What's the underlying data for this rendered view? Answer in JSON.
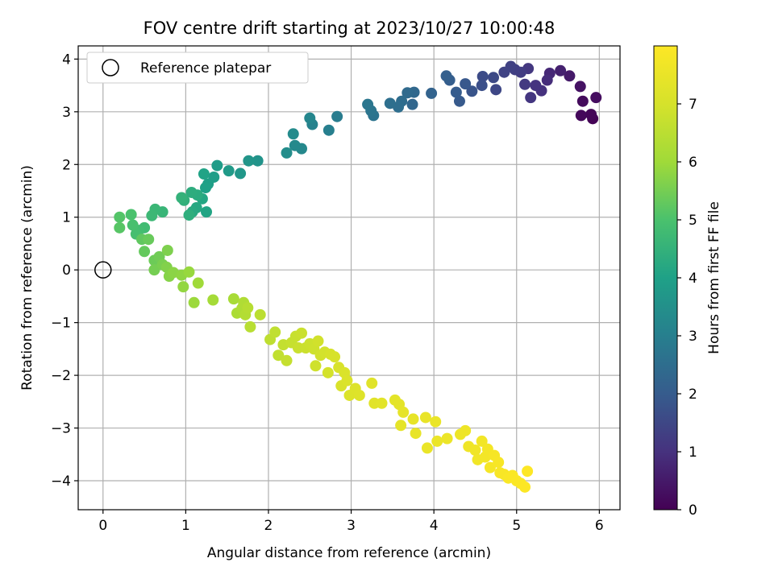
{
  "chart_data": {
    "type": "scatter",
    "title": "FOV centre drift starting at 2023/10/27 10:00:48",
    "xlabel": "Angular distance from reference (arcmin)",
    "ylabel": "Rotation from reference (arcmin)",
    "xlim": [
      -0.3,
      6.25
    ],
    "ylim": [
      -4.55,
      4.25
    ],
    "xticks": [
      0,
      1,
      2,
      3,
      4,
      5,
      6
    ],
    "yticks": [
      -4,
      -3,
      -2,
      -1,
      0,
      1,
      2,
      3,
      4
    ],
    "grid": true,
    "legend": {
      "position": "top-left",
      "entries": [
        "Reference platepar"
      ]
    },
    "reference_point": {
      "x": 0,
      "y": 0
    },
    "colorbar": {
      "label": "Hours from first FF file",
      "range": [
        0,
        8
      ],
      "ticks": [
        0,
        1,
        2,
        3,
        4,
        5,
        6,
        7
      ],
      "colormap": "viridis"
    },
    "points": [
      [
        5.92,
        2.87,
        0.05
      ],
      [
        5.9,
        2.95,
        0.1
      ],
      [
        5.78,
        2.93,
        0.15
      ],
      [
        5.8,
        3.2,
        0.2
      ],
      [
        5.96,
        3.27,
        0.25
      ],
      [
        5.77,
        3.48,
        0.35
      ],
      [
        5.64,
        3.68,
        0.5
      ],
      [
        5.53,
        3.78,
        0.65
      ],
      [
        5.4,
        3.73,
        0.8
      ],
      [
        5.37,
        3.6,
        0.9
      ],
      [
        5.3,
        3.4,
        1.0
      ],
      [
        5.23,
        3.5,
        1.05
      ],
      [
        5.17,
        3.27,
        1.1
      ],
      [
        5.14,
        3.82,
        1.15
      ],
      [
        5.1,
        3.52,
        1.2
      ],
      [
        5.05,
        3.75,
        1.25
      ],
      [
        4.98,
        3.8,
        1.3
      ],
      [
        4.93,
        3.86,
        1.35
      ],
      [
        4.85,
        3.75,
        1.4
      ],
      [
        4.75,
        3.42,
        1.5
      ],
      [
        4.72,
        3.65,
        1.55
      ],
      [
        4.59,
        3.67,
        1.6
      ],
      [
        4.58,
        3.5,
        1.7
      ],
      [
        4.46,
        3.39,
        1.8
      ],
      [
        4.38,
        3.53,
        1.9
      ],
      [
        4.31,
        3.2,
        1.95
      ],
      [
        4.27,
        3.37,
        2.0
      ],
      [
        4.19,
        3.6,
        2.05
      ],
      [
        4.15,
        3.68,
        2.1
      ],
      [
        3.97,
        3.35,
        2.2
      ],
      [
        3.74,
        3.14,
        2.3
      ],
      [
        3.76,
        3.37,
        2.35
      ],
      [
        3.68,
        3.36,
        2.4
      ],
      [
        3.61,
        3.2,
        2.45
      ],
      [
        3.57,
        3.09,
        2.5
      ],
      [
        3.47,
        3.16,
        2.55
      ],
      [
        3.27,
        2.93,
        2.65
      ],
      [
        3.24,
        3.02,
        2.7
      ],
      [
        3.2,
        3.14,
        2.75
      ],
      [
        2.83,
        2.91,
        2.9
      ],
      [
        2.73,
        2.65,
        3.0
      ],
      [
        2.53,
        2.76,
        3.1
      ],
      [
        2.5,
        2.88,
        3.2
      ],
      [
        2.4,
        2.3,
        3.25
      ],
      [
        2.32,
        2.36,
        3.3
      ],
      [
        2.3,
        2.58,
        3.35
      ],
      [
        2.22,
        2.22,
        3.4
      ],
      [
        1.87,
        2.07,
        3.6
      ],
      [
        1.76,
        2.07,
        3.65
      ],
      [
        1.66,
        1.83,
        3.7
      ],
      [
        1.52,
        1.88,
        3.8
      ],
      [
        1.38,
        1.98,
        3.85
      ],
      [
        1.34,
        1.76,
        3.9
      ],
      [
        1.27,
        1.63,
        3.95
      ],
      [
        1.24,
        1.56,
        4.0
      ],
      [
        1.22,
        1.82,
        4.05
      ],
      [
        1.25,
        1.1,
        4.1
      ],
      [
        1.2,
        1.35,
        4.15
      ],
      [
        1.13,
        1.18,
        4.2
      ],
      [
        1.08,
        1.1,
        4.25
      ],
      [
        1.14,
        1.42,
        4.3
      ],
      [
        1.07,
        1.47,
        4.35
      ],
      [
        1.04,
        1.04,
        4.4
      ],
      [
        0.98,
        1.32,
        4.45
      ],
      [
        0.95,
        1.37,
        4.5
      ],
      [
        0.72,
        1.1,
        4.6
      ],
      [
        0.63,
        1.15,
        4.65
      ],
      [
        0.59,
        1.03,
        4.7
      ],
      [
        0.5,
        0.8,
        4.8
      ],
      [
        0.43,
        0.75,
        4.85
      ],
      [
        0.4,
        0.68,
        4.9
      ],
      [
        0.36,
        0.85,
        4.95
      ],
      [
        0.34,
        1.05,
        5.0
      ],
      [
        0.2,
        1.0,
        5.1
      ],
      [
        0.2,
        0.8,
        5.15
      ],
      [
        0.47,
        0.58,
        5.25
      ],
      [
        0.5,
        0.35,
        5.3
      ],
      [
        0.55,
        0.58,
        5.35
      ],
      [
        0.62,
        0.18,
        5.4
      ],
      [
        0.68,
        0.25,
        5.45
      ],
      [
        0.62,
        0.0,
        5.5
      ],
      [
        0.72,
        0.1,
        5.55
      ],
      [
        0.78,
        0.37,
        5.6
      ],
      [
        0.77,
        0.05,
        5.65
      ],
      [
        0.8,
        -0.12,
        5.7
      ],
      [
        0.85,
        -0.05,
        5.75
      ],
      [
        0.95,
        -0.1,
        5.8
      ],
      [
        0.97,
        -0.32,
        5.85
      ],
      [
        1.04,
        -0.04,
        5.9
      ],
      [
        1.1,
        -0.62,
        5.95
      ],
      [
        1.15,
        -0.25,
        6.0
      ],
      [
        1.33,
        -0.57,
        6.1
      ],
      [
        1.58,
        -0.55,
        6.15
      ],
      [
        1.62,
        -0.82,
        6.2
      ],
      [
        1.68,
        -0.73,
        6.25
      ],
      [
        1.7,
        -0.62,
        6.3
      ],
      [
        1.72,
        -0.85,
        6.35
      ],
      [
        1.75,
        -0.72,
        6.4
      ],
      [
        1.78,
        -1.08,
        6.45
      ],
      [
        1.9,
        -0.85,
        6.5
      ],
      [
        2.02,
        -1.32,
        6.55
      ],
      [
        2.08,
        -1.18,
        6.6
      ],
      [
        2.12,
        -1.62,
        6.62
      ],
      [
        2.18,
        -1.42,
        6.65
      ],
      [
        2.22,
        -1.72,
        6.68
      ],
      [
        2.28,
        -1.38,
        6.7
      ],
      [
        2.33,
        -1.26,
        6.72
      ],
      [
        2.36,
        -1.48,
        6.75
      ],
      [
        2.4,
        -1.2,
        6.78
      ],
      [
        2.45,
        -1.48,
        6.8
      ],
      [
        2.5,
        -1.4,
        6.82
      ],
      [
        2.55,
        -1.5,
        6.85
      ],
      [
        2.57,
        -1.82,
        6.87
      ],
      [
        2.6,
        -1.35,
        6.9
      ],
      [
        2.63,
        -1.62,
        6.92
      ],
      [
        2.68,
        -1.56,
        6.95
      ],
      [
        2.72,
        -1.95,
        6.97
      ],
      [
        2.75,
        -1.6,
        7.0
      ],
      [
        2.8,
        -1.65,
        7.02
      ],
      [
        2.85,
        -1.85,
        7.05
      ],
      [
        2.88,
        -2.2,
        7.07
      ],
      [
        2.92,
        -1.95,
        7.1
      ],
      [
        2.95,
        -2.1,
        7.12
      ],
      [
        2.98,
        -2.38,
        7.15
      ],
      [
        3.05,
        -2.25,
        7.17
      ],
      [
        3.1,
        -2.38,
        7.2
      ],
      [
        3.25,
        -2.15,
        7.25
      ],
      [
        3.28,
        -2.53,
        7.28
      ],
      [
        3.37,
        -2.53,
        7.3
      ],
      [
        3.53,
        -2.47,
        7.33
      ],
      [
        3.58,
        -2.55,
        7.35
      ],
      [
        3.6,
        -2.95,
        7.38
      ],
      [
        3.63,
        -2.7,
        7.4
      ],
      [
        3.75,
        -2.83,
        7.43
      ],
      [
        3.78,
        -3.1,
        7.45
      ],
      [
        3.9,
        -2.8,
        7.48
      ],
      [
        3.92,
        -3.38,
        7.5
      ],
      [
        4.02,
        -2.88,
        7.52
      ],
      [
        4.04,
        -3.25,
        7.55
      ],
      [
        4.16,
        -3.2,
        7.57
      ],
      [
        4.32,
        -3.12,
        7.6
      ],
      [
        4.38,
        -3.05,
        7.62
      ],
      [
        4.42,
        -3.35,
        7.65
      ],
      [
        4.5,
        -3.42,
        7.67
      ],
      [
        4.53,
        -3.6,
        7.7
      ],
      [
        4.58,
        -3.25,
        7.72
      ],
      [
        4.62,
        -3.55,
        7.75
      ],
      [
        4.65,
        -3.4,
        7.77
      ],
      [
        4.68,
        -3.75,
        7.8
      ],
      [
        4.73,
        -3.52,
        7.82
      ],
      [
        4.78,
        -3.65,
        7.84
      ],
      [
        4.8,
        -3.85,
        7.86
      ],
      [
        4.85,
        -3.88,
        7.88
      ],
      [
        4.9,
        -3.95,
        7.9
      ],
      [
        4.95,
        -3.9,
        7.92
      ],
      [
        5.0,
        -4.0,
        7.94
      ],
      [
        5.05,
        -4.05,
        7.96
      ],
      [
        5.1,
        -4.12,
        7.98
      ],
      [
        5.13,
        -3.82,
        7.99
      ]
    ]
  }
}
